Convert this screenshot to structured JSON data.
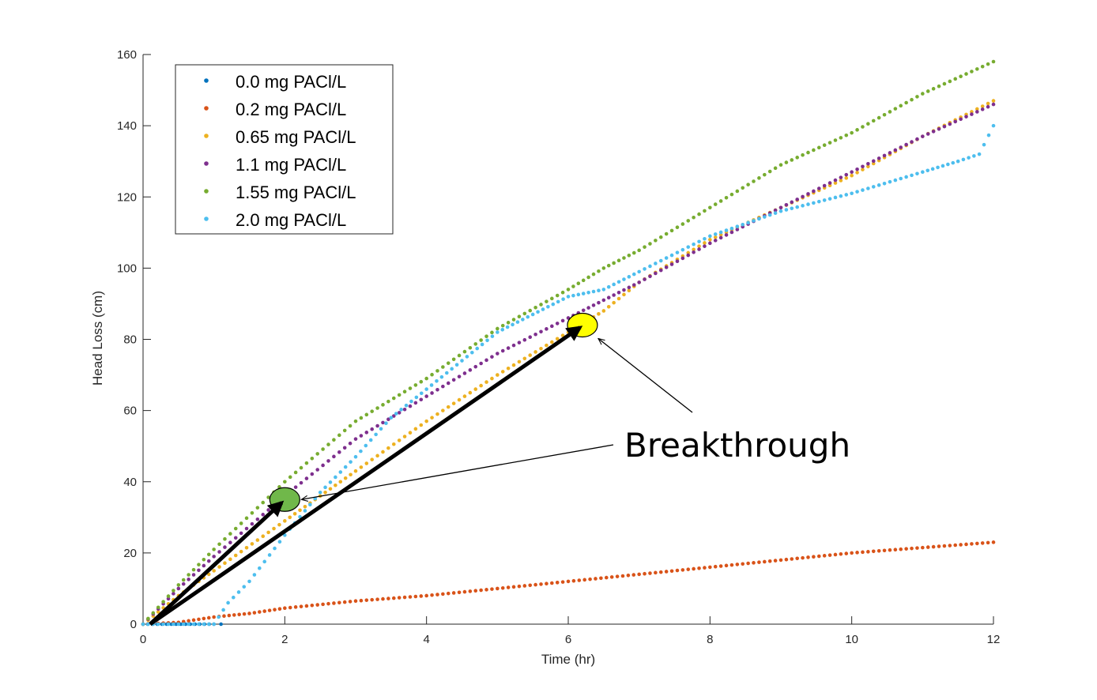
{
  "chart_data": {
    "type": "scatter",
    "title": "",
    "xlabel": "Time (hr)",
    "ylabel": "Head Loss (cm)",
    "xlim": [
      0,
      12
    ],
    "ylim": [
      0,
      160
    ],
    "xticks": [
      0,
      2,
      4,
      6,
      8,
      10,
      12
    ],
    "yticks": [
      0,
      20,
      40,
      60,
      80,
      100,
      120,
      140,
      160
    ],
    "grid": false,
    "legend_position": "top-left",
    "series": [
      {
        "name": "0.0 mg PACl/L",
        "color": "#0072BD",
        "points": [
          [
            0,
            0
          ],
          [
            0.2,
            0
          ],
          [
            0.4,
            0
          ],
          [
            0.6,
            0
          ],
          [
            0.8,
            0
          ],
          [
            1.0,
            0
          ],
          [
            1.1,
            0
          ]
        ]
      },
      {
        "name": "0.2 mg PACl/L",
        "color": "#D95319",
        "points": [
          [
            0,
            0
          ],
          [
            0.5,
            0.5
          ],
          [
            1.0,
            2
          ],
          [
            1.5,
            3
          ],
          [
            2,
            4.5
          ],
          [
            3,
            6.5
          ],
          [
            4,
            8
          ],
          [
            5,
            10
          ],
          [
            6,
            12
          ],
          [
            7,
            14
          ],
          [
            8,
            16
          ],
          [
            9,
            18
          ],
          [
            10,
            20
          ],
          [
            11,
            21.5
          ],
          [
            12,
            23
          ]
        ]
      },
      {
        "name": "0.65 mg PACl/L",
        "color": "#EDB120",
        "points": [
          [
            0,
            0
          ],
          [
            0.5,
            8
          ],
          [
            1,
            15
          ],
          [
            2,
            29
          ],
          [
            2.5,
            36
          ],
          [
            3,
            43
          ],
          [
            4,
            57
          ],
          [
            5,
            70
          ],
          [
            6,
            82
          ],
          [
            6.5,
            88
          ],
          [
            7,
            96
          ],
          [
            8,
            108
          ],
          [
            9,
            117
          ],
          [
            10,
            126
          ],
          [
            11,
            137
          ],
          [
            12,
            147
          ]
        ]
      },
      {
        "name": "1.1 mg PACl/L",
        "color": "#7E2F8E",
        "points": [
          [
            0,
            0
          ],
          [
            0.5,
            10
          ],
          [
            1,
            19
          ],
          [
            2,
            36
          ],
          [
            3,
            52
          ],
          [
            4,
            64
          ],
          [
            5,
            76
          ],
          [
            6,
            86
          ],
          [
            6.5,
            91
          ],
          [
            7,
            96
          ],
          [
            8,
            107
          ],
          [
            9,
            117
          ],
          [
            10,
            127
          ],
          [
            11,
            137
          ],
          [
            12,
            146
          ]
        ]
      },
      {
        "name": "1.55 mg PACl/L",
        "color": "#77AC30",
        "points": [
          [
            0,
            0
          ],
          [
            0.5,
            11
          ],
          [
            1,
            21
          ],
          [
            2,
            40
          ],
          [
            3,
            57
          ],
          [
            4,
            69
          ],
          [
            5,
            83
          ],
          [
            6,
            94
          ],
          [
            6.5,
            100
          ],
          [
            7,
            105
          ],
          [
            8,
            117
          ],
          [
            9,
            129
          ],
          [
            10,
            138
          ],
          [
            11,
            149
          ],
          [
            12,
            158
          ]
        ]
      },
      {
        "name": "2.0 mg PACl/L",
        "color": "#4DBEEE",
        "points": [
          [
            0,
            0
          ],
          [
            0.5,
            0
          ],
          [
            1,
            0
          ],
          [
            1.2,
            6
          ],
          [
            1.5,
            12
          ],
          [
            2,
            25
          ],
          [
            2.5,
            37
          ],
          [
            3,
            47
          ],
          [
            3.5,
            58
          ],
          [
            4,
            66
          ],
          [
            4.5,
            74
          ],
          [
            5,
            82
          ],
          [
            5.5,
            87
          ],
          [
            6,
            92
          ],
          [
            6.5,
            94
          ],
          [
            7,
            99
          ],
          [
            8,
            109
          ],
          [
            9,
            116
          ],
          [
            10,
            121
          ],
          [
            11,
            127
          ],
          [
            11.5,
            130
          ],
          [
            11.8,
            132
          ],
          [
            12,
            140
          ]
        ]
      }
    ],
    "annotations": {
      "text": "Breakthrough",
      "markers": [
        {
          "x": 2.0,
          "y": 35,
          "color": "#70B84A"
        },
        {
          "x": 6.2,
          "y": 84,
          "color": "#FFFF00"
        }
      ]
    }
  }
}
